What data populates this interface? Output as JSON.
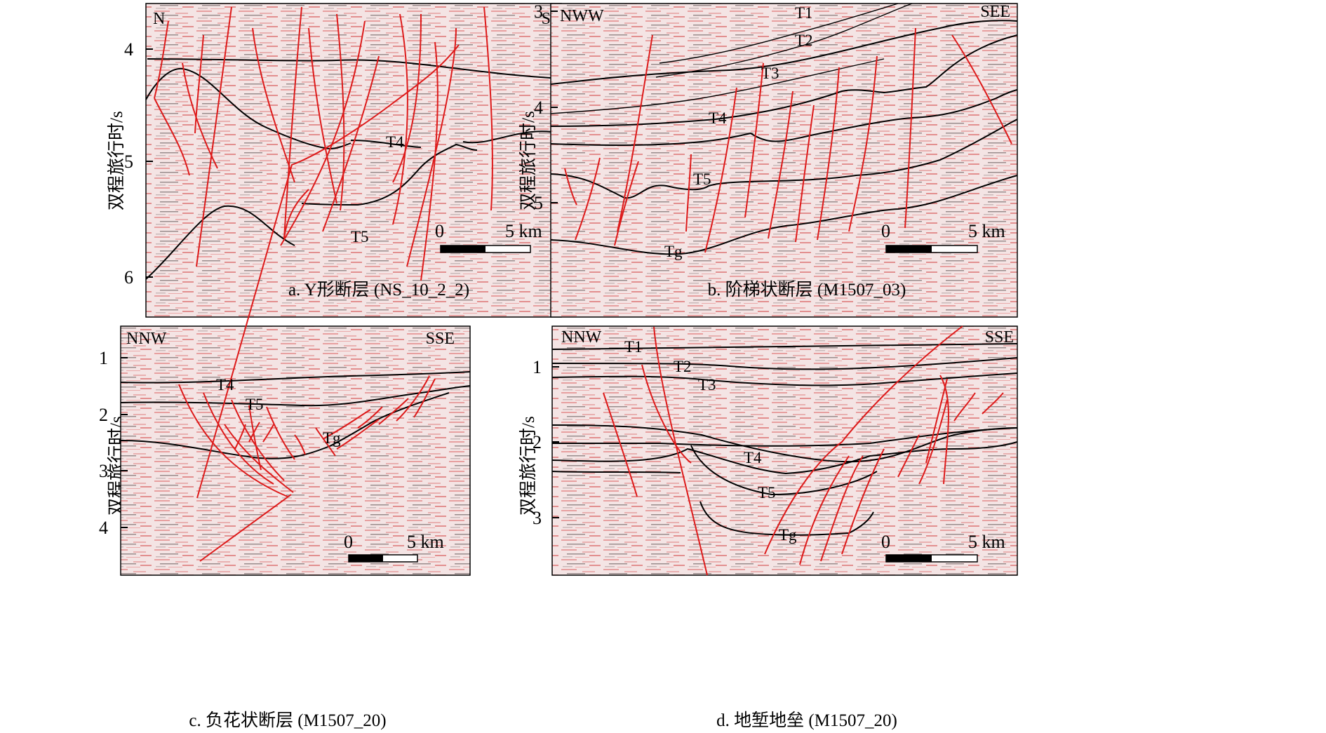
{
  "colors": {
    "fault": "#dd1a1a",
    "horizon": "#000000",
    "seismic_bg": "#f3e3e3",
    "seismic_stripe_red": "#e79a9a",
    "seismic_stripe_dark": "#8a7a7a"
  },
  "panels": [
    {
      "id": "a",
      "caption": "a. Y形断层 (NS_10_2_2)",
      "ylabel": "双程旅行时/s",
      "directions": [
        "N",
        "S"
      ],
      "yticks": [
        "4",
        "5",
        "6"
      ],
      "horizons": [
        "T4",
        "T5"
      ],
      "scalebar": {
        "start": "0",
        "end": "5 km"
      }
    },
    {
      "id": "b",
      "caption": "b. 阶梯状断层 (M1507_03)",
      "ylabel": "双程旅行时/s",
      "directions": [
        "NWW",
        "SEE"
      ],
      "yticks": [
        "3",
        "4",
        "5"
      ],
      "horizons": [
        "T1",
        "T2",
        "T3",
        "T4",
        "T5",
        "Tg"
      ],
      "scalebar": {
        "start": "0",
        "end": "5 km"
      }
    },
    {
      "id": "c",
      "caption": "c. 负花状断层 (M1507_20)",
      "ylabel": "双程旅行时/s",
      "directions": [
        "NNW",
        "SSE"
      ],
      "yticks": [
        "1",
        "2",
        "3",
        "4"
      ],
      "horizons": [
        "T4",
        "T5",
        "Tg"
      ],
      "scalebar": {
        "start": "0",
        "end": "5 km"
      }
    },
    {
      "id": "d",
      "caption": "d. 地堑地垒 (M1507_20)",
      "ylabel": "双程旅行时/s",
      "directions": [
        "NNW",
        "SSE"
      ],
      "yticks": [
        "1",
        "2",
        "3"
      ],
      "horizons": [
        "T1",
        "T2",
        "T3",
        "T4",
        "T5",
        "Tg"
      ],
      "scalebar": {
        "start": "0",
        "end": "5 km"
      }
    }
  ]
}
